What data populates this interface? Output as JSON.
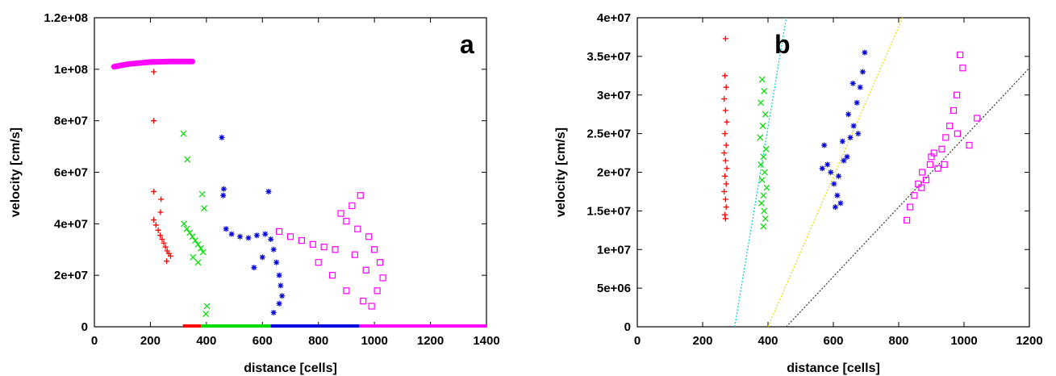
{
  "chart_data": [
    {
      "type": "scatter",
      "panel_label": "a",
      "xlabel": "distance [cells]",
      "ylabel": "velocity [cm/s]",
      "xlim": [
        0,
        1400
      ],
      "ylim": [
        0,
        120000000
      ],
      "xticks": [
        "0",
        "200",
        "400",
        "600",
        "800",
        "1000",
        "1200",
        "1400"
      ],
      "yticks": [
        "0",
        "2e+07",
        "4e+07",
        "6e+07",
        "8e+07",
        "1e+08",
        "1.2e+08"
      ],
      "grid": false,
      "legend": "none",
      "series": [
        {
          "color": "#ff0000",
          "marker": "plus",
          "points": [
            [
              212,
              99000000
            ],
            [
              212,
              80000000
            ],
            [
              212,
              52500000
            ],
            [
              238,
              49500000
            ],
            [
              236,
              44500000
            ],
            [
              212,
              41500000
            ],
            [
              220,
              39500000
            ],
            [
              228,
              37500000
            ],
            [
              235,
              35500000
            ],
            [
              242,
              34000000
            ],
            [
              248,
              32500000
            ],
            [
              254,
              31000000
            ],
            [
              260,
              29500000
            ],
            [
              266,
              28500000
            ],
            [
              272,
              27500000
            ],
            [
              258,
              25500000
            ]
          ],
          "baseline": [
            316,
            380
          ]
        },
        {
          "color": "#00dd00",
          "marker": "x",
          "points": [
            [
              318,
              75000000
            ],
            [
              332,
              65000000
            ],
            [
              385,
              51500000
            ],
            [
              392,
              46000000
            ],
            [
              320,
              40000000
            ],
            [
              330,
              38000000
            ],
            [
              340,
              36500000
            ],
            [
              350,
              35000000
            ],
            [
              360,
              33500000
            ],
            [
              370,
              32000000
            ],
            [
              380,
              30500000
            ],
            [
              388,
              29000000
            ],
            [
              352,
              27000000
            ],
            [
              370,
              25000000
            ],
            [
              402,
              8000000
            ],
            [
              398,
              5000000
            ]
          ],
          "baseline": [
            380,
            630
          ]
        },
        {
          "color": "#0000dd",
          "marker": "star",
          "points": [
            [
              455,
              73500000
            ],
            [
              462,
              53500000
            ],
            [
              460,
              51000000
            ],
            [
              470,
              38000000
            ],
            [
              490,
              36000000
            ],
            [
              520,
              35000000
            ],
            [
              550,
              34500000
            ],
            [
              580,
              35500000
            ],
            [
              610,
              36000000
            ],
            [
              630,
              34000000
            ],
            [
              622,
              52500000
            ],
            [
              640,
              30000000
            ],
            [
              650,
              25000000
            ],
            [
              660,
              20000000
            ],
            [
              665,
              16000000
            ],
            [
              670,
              12000000
            ],
            [
              660,
              9000000
            ],
            [
              640,
              5500000
            ],
            [
              600,
              27000000
            ],
            [
              570,
              23000000
            ]
          ],
          "baseline": [
            630,
            945
          ]
        },
        {
          "color": "#ff00ff",
          "marker": "square",
          "points": [
            [
              660,
              37000000
            ],
            [
              700,
              35000000
            ],
            [
              740,
              33500000
            ],
            [
              780,
              32000000
            ],
            [
              820,
              31000000
            ],
            [
              860,
              30000000
            ],
            [
              880,
              44000000
            ],
            [
              920,
              47000000
            ],
            [
              950,
              51000000
            ],
            [
              900,
              41000000
            ],
            [
              940,
              38000000
            ],
            [
              980,
              35000000
            ],
            [
              1000,
              30000000
            ],
            [
              1020,
              25000000
            ],
            [
              1030,
              19000000
            ],
            [
              1010,
              14000000
            ],
            [
              960,
              10000000
            ],
            [
              990,
              8000000
            ],
            [
              900,
              14000000
            ],
            [
              850,
              20000000
            ],
            [
              800,
              25000000
            ],
            [
              930,
              28000000
            ],
            [
              970,
              22000000
            ]
          ],
          "band": [
            [
              70,
              101000000
            ],
            [
              120,
              102000000
            ],
            [
              200,
              102800000
            ],
            [
              270,
              103000000
            ],
            [
              350,
              103000000
            ]
          ],
          "baseline": [
            945,
            1400
          ]
        }
      ]
    },
    {
      "type": "scatter",
      "panel_label": "b",
      "xlabel": "distance [cells]",
      "ylabel": "velocity [cm/s]",
      "xlim": [
        0,
        1200
      ],
      "ylim": [
        0,
        40000000
      ],
      "xticks": [
        "0",
        "200",
        "400",
        "600",
        "800",
        "1000",
        "1200"
      ],
      "yticks": [
        "0",
        "5e+06",
        "1e+07",
        "1.5e+07",
        "2e+07",
        "2.5e+07",
        "3e+07",
        "3.5e+07",
        "4e+07"
      ],
      "grid": false,
      "legend": "none",
      "series": [
        {
          "color": "#ff0000",
          "marker": "plus",
          "points": [
            [
              270,
              37300000
            ],
            [
              268,
              32500000
            ],
            [
              272,
              31000000
            ],
            [
              266,
              29500000
            ],
            [
              270,
              28000000
            ],
            [
              274,
              26500000
            ],
            [
              268,
              25000000
            ],
            [
              272,
              23500000
            ],
            [
              266,
              22500000
            ],
            [
              270,
              21500000
            ],
            [
              274,
              20500000
            ],
            [
              268,
              19500000
            ],
            [
              272,
              18500000
            ],
            [
              266,
              17500000
            ],
            [
              270,
              16500000
            ],
            [
              272,
              15500000
            ],
            [
              268,
              14500000
            ],
            [
              270,
              14000000
            ]
          ]
        },
        {
          "color": "#00dd00",
          "marker": "x",
          "points": [
            [
              382,
              32000000
            ],
            [
              388,
              30500000
            ],
            [
              378,
              29000000
            ],
            [
              392,
              27500000
            ],
            [
              384,
              26000000
            ],
            [
              376,
              24500000
            ],
            [
              394,
              23000000
            ],
            [
              386,
              22000000
            ],
            [
              378,
              21000000
            ],
            [
              390,
              20000000
            ],
            [
              382,
              19000000
            ],
            [
              396,
              18000000
            ],
            [
              386,
              17000000
            ],
            [
              380,
              16000000
            ],
            [
              388,
              15000000
            ],
            [
              392,
              14000000
            ],
            [
              386,
              13000000
            ]
          ]
        },
        {
          "color": "#0000dd",
          "marker": "star",
          "points": [
            [
              582,
              21000000
            ],
            [
              592,
              20000000
            ],
            [
              602,
              18500000
            ],
            [
              612,
              17000000
            ],
            [
              622,
              16000000
            ],
            [
              632,
              21500000
            ],
            [
              642,
              22000000
            ],
            [
              652,
              24500000
            ],
            [
              662,
              26000000
            ],
            [
              672,
              29000000
            ],
            [
              682,
              31000000
            ],
            [
              690,
              33000000
            ],
            [
              696,
              35500000
            ],
            [
              572,
              23500000
            ],
            [
              566,
              20500000
            ],
            [
              616,
              19500000
            ],
            [
              628,
              24000000
            ],
            [
              646,
              27500000
            ],
            [
              606,
              15500000
            ],
            [
              660,
              31500000
            ],
            [
              676,
              25000000
            ]
          ]
        },
        {
          "color": "#ff00ff",
          "marker": "square",
          "points": [
            [
              825,
              13800000
            ],
            [
              835,
              15500000
            ],
            [
              848,
              17000000
            ],
            [
              860,
              18500000
            ],
            [
              872,
              20000000
            ],
            [
              884,
              19000000
            ],
            [
              896,
              21000000
            ],
            [
              908,
              22500000
            ],
            [
              920,
              20500000
            ],
            [
              932,
              23000000
            ],
            [
              944,
              24500000
            ],
            [
              956,
              26000000
            ],
            [
              968,
              28000000
            ],
            [
              978,
              30000000
            ],
            [
              988,
              35200000
            ],
            [
              996,
              33500000
            ],
            [
              1040,
              27000000
            ],
            [
              1016,
              23500000
            ],
            [
              900,
              22000000
            ],
            [
              870,
              18000000
            ],
            [
              940,
              21000000
            ],
            [
              980,
              25000000
            ]
          ]
        }
      ],
      "fit_lines": [
        {
          "color": "#00cccc",
          "from": [
            298,
            0
          ],
          "to": [
            456,
            40000000
          ]
        },
        {
          "color": "#dddd00",
          "from": [
            400,
            0
          ],
          "to": [
            812,
            40000000
          ]
        },
        {
          "color": "#333333",
          "from": [
            456,
            0
          ],
          "to": [
            1200,
            33500000
          ]
        }
      ]
    }
  ]
}
